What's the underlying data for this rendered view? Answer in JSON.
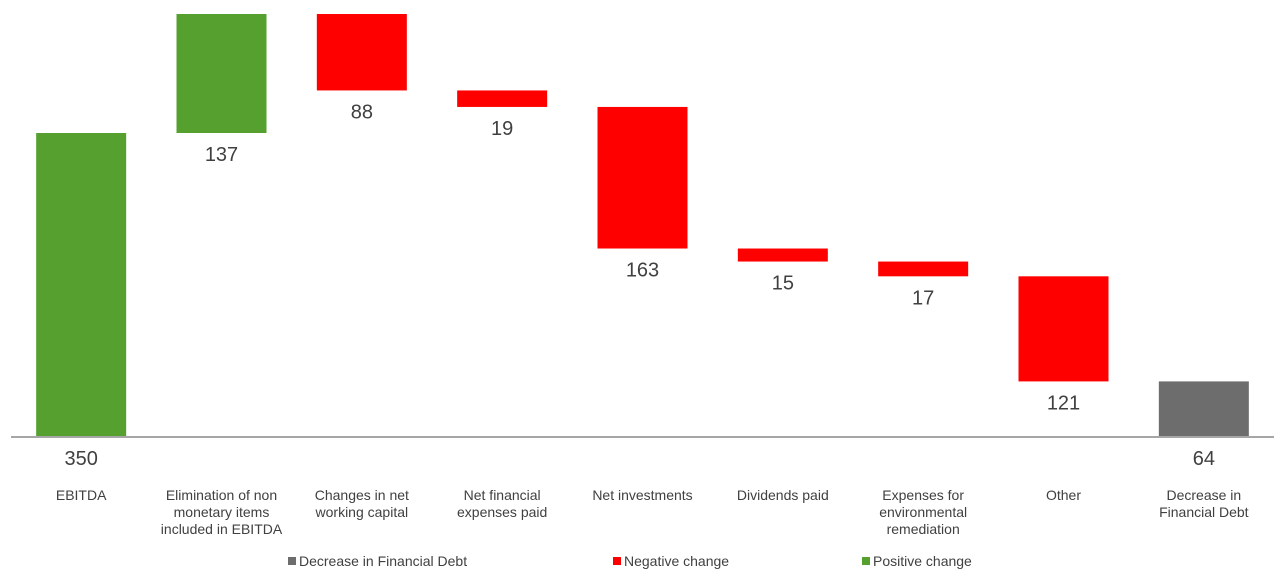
{
  "chart_data": {
    "type": "waterfall",
    "categories": [
      "EBITDA",
      "Elimination of non monetary items included in EBITDA",
      "Changes in net working capital",
      "Net financial expenses paid",
      "Net investments",
      "Dividends paid",
      "Expenses for environmental remediation",
      "Other",
      "Decrease in Financial Debt"
    ],
    "series": [
      {
        "name": "Decrease in Financial Debt",
        "color": "#6d6d6d",
        "values": [
          null,
          null,
          null,
          null,
          null,
          null,
          null,
          null,
          64
        ]
      },
      {
        "name": "Negative change",
        "color": "#ff0000",
        "values": [
          null,
          null,
          88,
          19,
          163,
          15,
          17,
          121,
          null
        ]
      },
      {
        "name": "Positive change",
        "color": "#55a02f",
        "values": [
          350,
          137,
          null,
          null,
          null,
          null,
          null,
          null,
          null
        ]
      }
    ],
    "ylim": [
      0,
      500
    ]
  }
}
